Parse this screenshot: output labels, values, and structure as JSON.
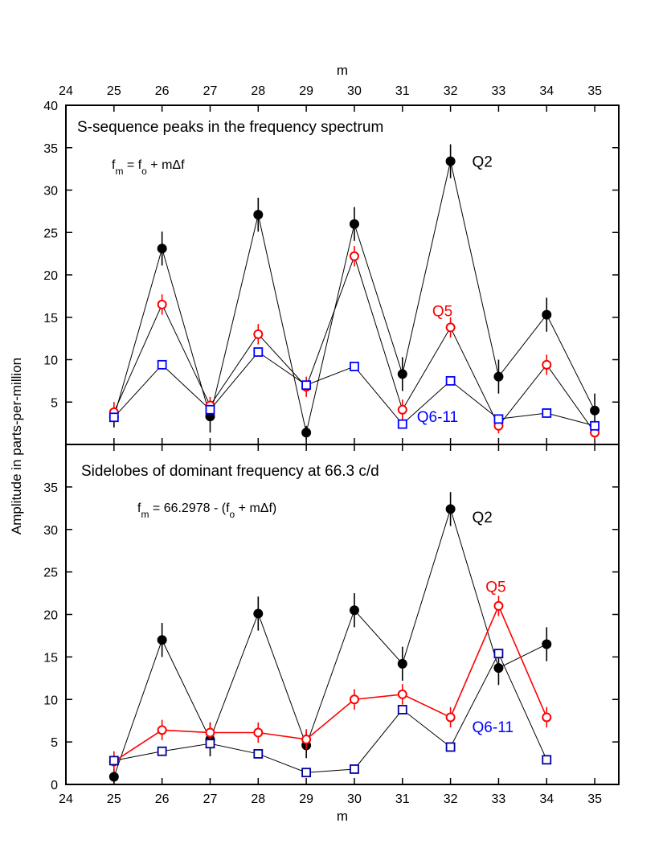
{
  "chart_data": [
    {
      "type": "line",
      "panel": "top",
      "title": "S-sequence peaks in the frequency spectrum",
      "equation": {
        "lhs": "f",
        "lhs_sub": "m",
        "eq_text": " = f",
        "f_sub": "o",
        "tail": " + mΔf"
      },
      "xlabel": "m",
      "ylabel": "Amplitude in parts-per-million",
      "xlim": [
        24,
        35.5
      ],
      "ylim": [
        0,
        40
      ],
      "x_ticks": [
        "24",
        "25",
        "26",
        "27",
        "28",
        "29",
        "30",
        "31",
        "32",
        "33",
        "34",
        "35"
      ],
      "y_ticks": [
        "5",
        "10",
        "15",
        "20",
        "25",
        "30",
        "35",
        "40"
      ],
      "x": [
        25,
        26,
        27,
        28,
        29,
        30,
        31,
        32,
        33,
        34,
        35
      ],
      "series": [
        {
          "name": "Q2",
          "color": "#000000",
          "marker": "filled-circle",
          "line_color": "#000000",
          "values": [
            3.2,
            23.1,
            3.3,
            27.1,
            1.4,
            26.0,
            8.3,
            33.4,
            8.0,
            15.3,
            4.0
          ],
          "errors": [
            1.2,
            2.0,
            1.9,
            2.0,
            0.8,
            2.0,
            2.0,
            2.0,
            2.0,
            2.0,
            2.0
          ]
        },
        {
          "name": "Q5",
          "color": "#ff0000",
          "marker": "open-circle",
          "line_color": "#000000",
          "values": [
            3.8,
            16.5,
            4.6,
            13.0,
            6.8,
            22.2,
            4.1,
            13.8,
            2.2,
            9.4,
            1.4
          ],
          "errors": [
            1.2,
            1.2,
            1.0,
            1.2,
            1.2,
            1.2,
            1.2,
            1.2,
            0.9,
            1.2,
            0.8
          ]
        },
        {
          "name": "Q6-11",
          "color": "#0000ff",
          "marker": "open-square",
          "line_color": "#000000",
          "values": [
            3.2,
            9.4,
            4.1,
            10.9,
            7.0,
            9.2,
            2.4,
            7.5,
            3.0,
            3.7,
            2.2
          ],
          "errors": []
        }
      ],
      "labels": [
        {
          "series": "Q2",
          "text": "Q2",
          "x": 32.45,
          "y": 33.4,
          "color": "#000000"
        },
        {
          "series": "Q5",
          "text": "Q5",
          "x": 31.62,
          "y": 15.8,
          "color": "#ff0000"
        },
        {
          "series": "Q6-11",
          "text": "Q6-11",
          "x": 31.3,
          "y": 3.3,
          "color": "#0000ff"
        }
      ]
    },
    {
      "type": "line",
      "panel": "bottom",
      "title": "Sidelobes of dominant frequency at 66.3 c/d",
      "equation": {
        "lhs": "f",
        "lhs_sub": "m",
        "eq_text": " = 66.2978 - (f",
        "f_sub": "o",
        "tail": " + mΔf)"
      },
      "xlabel": "m",
      "ylabel": "Amplitude in parts-per-million",
      "xlim": [
        24,
        35.5
      ],
      "ylim": [
        0,
        40
      ],
      "x_ticks": [
        "24",
        "25",
        "26",
        "27",
        "28",
        "29",
        "30",
        "31",
        "32",
        "33",
        "34",
        "35"
      ],
      "y_ticks": [
        "0",
        "5",
        "10",
        "15",
        "20",
        "25",
        "30",
        "35"
      ],
      "x": [
        25,
        26,
        27,
        28,
        29,
        30,
        31,
        32,
        33,
        34
      ],
      "series": [
        {
          "name": "Q2",
          "color": "#000000",
          "marker": "filled-circle",
          "line_color": "#000000",
          "values": [
            0.9,
            17.0,
            5.3,
            20.1,
            4.6,
            20.5,
            14.2,
            32.4,
            13.7,
            16.5
          ],
          "errors": [
            1.0,
            2.0,
            2.0,
            2.0,
            1.5,
            2.0,
            2.0,
            2.0,
            2.0,
            2.0
          ]
        },
        {
          "name": "Q5",
          "color": "#ff0000",
          "marker": "open-circle",
          "line_color": "#ff0000",
          "values": [
            2.7,
            6.4,
            6.1,
            6.1,
            5.3,
            10.0,
            10.6,
            7.9,
            21.0,
            7.9
          ],
          "errors": [
            1.2,
            1.2,
            1.2,
            1.2,
            1.2,
            1.2,
            1.2,
            1.2,
            1.2,
            1.2
          ]
        },
        {
          "name": "Q6-11",
          "color": "#00009c",
          "marker": "open-square",
          "line_color": "#000000",
          "values": [
            2.8,
            3.9,
            4.8,
            3.6,
            1.4,
            1.8,
            8.8,
            4.4,
            15.4,
            2.9
          ],
          "errors": []
        }
      ],
      "labels": [
        {
          "series": "Q2",
          "text": "Q2",
          "x": 32.45,
          "y": 31.5,
          "color": "#000000"
        },
        {
          "series": "Q5",
          "text": "Q5",
          "x": 32.73,
          "y": 23.3,
          "color": "#ff0000"
        },
        {
          "series": "Q6-11",
          "text": "Q6-11",
          "x": 32.45,
          "y": 6.8,
          "color": "#0000ff"
        }
      ]
    }
  ]
}
